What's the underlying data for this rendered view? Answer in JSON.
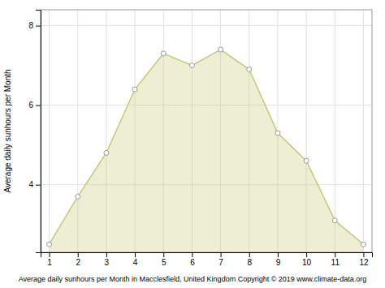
{
  "chart_data": {
    "type": "area",
    "x": [
      1,
      2,
      3,
      4,
      5,
      6,
      7,
      8,
      9,
      10,
      11,
      12
    ],
    "values": [
      2.5,
      3.7,
      4.8,
      6.4,
      7.3,
      7.0,
      7.4,
      6.9,
      5.3,
      4.6,
      3.1,
      2.5
    ],
    "color": "#C8C870",
    "marker": "circle",
    "xlabel": "Average daily sunhours per Month in Macclesfield, United Kingdom Copyright © 2019 www.climate-data.org",
    "ylabel": "Average daily sunhours per Month",
    "xlim": [
      0.7,
      12.3
    ],
    "xticks": [
      1,
      2,
      3,
      4,
      5,
      6,
      7,
      8,
      9,
      10,
      11,
      12
    ],
    "ylim": [
      2.3,
      8.4
    ],
    "yticks": [
      4,
      6,
      8
    ],
    "grid": true
  }
}
